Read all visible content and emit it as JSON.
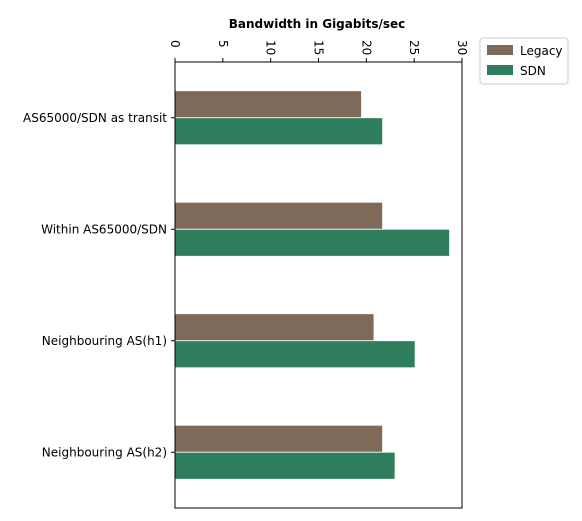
{
  "chart_data": {
    "type": "bar",
    "orientation": "horizontal",
    "title": "Bandwidth in Gigabits/sec",
    "xlabel": "",
    "ylabel": "",
    "xlim": [
      0,
      30
    ],
    "x_ticks": [
      0,
      5,
      10,
      15,
      20,
      25,
      30
    ],
    "tick_label_rotation": "rotated 90 degrees clockwise",
    "x_axis_position": "top",
    "grid": false,
    "legend_position": "top-right outside plot",
    "categories": [
      "AS65000/SDN as transit",
      "Within AS65000/SDN",
      "Neighbouring AS(h1)",
      "Neighbouring AS(h2)"
    ],
    "series": [
      {
        "name": "Legacy",
        "color": "#7f6a5a",
        "values": [
          19.5,
          21.7,
          20.8,
          21.7
        ]
      },
      {
        "name": "SDN",
        "color": "#2e7d5c",
        "values": [
          21.7,
          28.7,
          25.1,
          23.0
        ]
      }
    ]
  }
}
